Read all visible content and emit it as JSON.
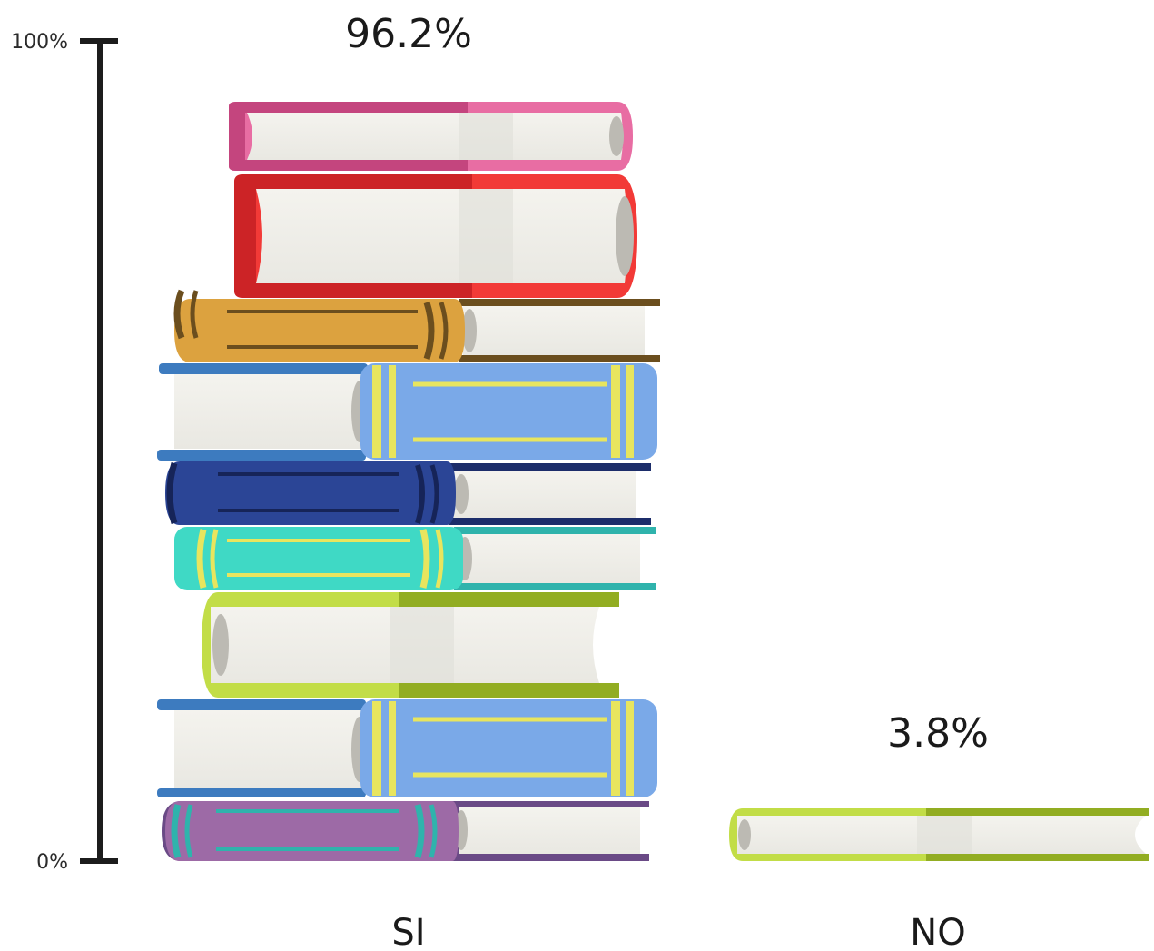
{
  "chart_data": {
    "type": "bar",
    "categories": [
      "SI",
      "NO"
    ],
    "values": [
      96.2,
      3.8
    ],
    "value_labels": [
      "96.2%",
      "3.8%"
    ],
    "ylim": [
      0,
      100
    ],
    "yticks": [
      {
        "value": 0,
        "label": "0%"
      },
      {
        "value": 100,
        "label": "100%"
      }
    ],
    "title": "",
    "xlabel": "",
    "ylabel": "",
    "grid": false,
    "legend": "none"
  }
}
